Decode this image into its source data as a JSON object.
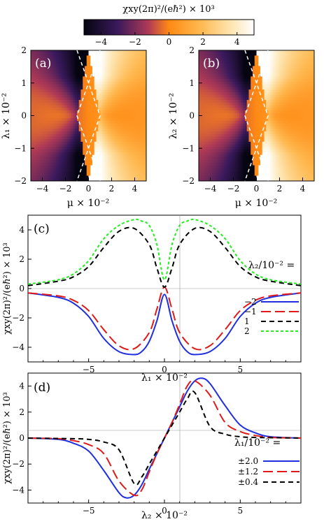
{
  "colorbar": {
    "title": "χxy(2π)²/(eℏ²) × 10³",
    "range": [
      -5,
      5
    ],
    "ticks": [
      -4,
      -2,
      0,
      2,
      4
    ],
    "tick_labels": [
      "−4",
      "−2",
      "0",
      "2",
      "4"
    ]
  },
  "heatmaps": [
    {
      "label": "(a)",
      "xlabel": "μ × 10⁻²",
      "ylabel": "λ₁ × 10⁻²",
      "xticks": [
        "−4",
        "−2",
        "0",
        "2",
        "4"
      ],
      "yticks": [
        "2",
        "1",
        "0",
        "−1",
        "−2"
      ]
    },
    {
      "label": "(b)",
      "xlabel": "μ × 10⁻²",
      "ylabel": "λ₂ × 10⁻²",
      "xticks": [
        "−4",
        "−2",
        "0",
        "2",
        "4"
      ],
      "yticks": [
        "2",
        "1",
        "0",
        "−1",
        "−2"
      ]
    }
  ],
  "chart_data": [
    {
      "type": "heatmap",
      "label": "(a)",
      "xlabel": "μ × 10⁻²",
      "ylabel": "λ₁ × 10⁻²",
      "xlim": [
        -5,
        5
      ],
      "ylim": [
        -2,
        2
      ],
      "zlim": [
        -5,
        5
      ],
      "overlay": "white dashed boundary |λ| = 2(1 − |μ|)"
    },
    {
      "type": "heatmap",
      "label": "(b)",
      "xlabel": "μ × 10⁻²",
      "ylabel": "λ₂ × 10⁻²",
      "xlim": [
        -5,
        5
      ],
      "ylim": [
        -2,
        2
      ],
      "zlim": [
        -5,
        5
      ],
      "overlay": "white dashed boundary |λ| = 2(1 − |μ|)"
    },
    {
      "type": "line",
      "label": "(c)",
      "xlabel": "λ₁ × 10⁻²",
      "ylabel": "χxy(2π)²/(eℏ²) × 10³",
      "xlim": [
        -9,
        9
      ],
      "ylim": [
        -5,
        5
      ],
      "xticks": [
        -5,
        0,
        5
      ],
      "yticks": [
        -4,
        -2,
        0,
        2,
        4
      ],
      "legend_title": "λ₂/10⁻² =",
      "series": [
        {
          "name": "−2",
          "color": "#1f2fe0",
          "dash": "solid",
          "x": [
            -9,
            -7,
            -6,
            -5,
            -4,
            -3,
            -2,
            -1.5,
            -1,
            -0.5,
            0,
            0.5,
            1,
            1.5,
            2,
            3,
            4,
            5,
            6,
            7,
            9
          ],
          "y": [
            -0.3,
            -0.6,
            -1.0,
            -1.9,
            -3.4,
            -4.3,
            -4.5,
            -4.3,
            -3.6,
            -2.2,
            -0.4,
            -2.2,
            -3.6,
            -4.3,
            -4.5,
            -4.3,
            -3.4,
            -1.9,
            -1.0,
            -0.6,
            -0.3
          ]
        },
        {
          "name": "−1",
          "color": "#e01a1a",
          "dash": "long",
          "x": [
            -9,
            -7,
            -6,
            -5,
            -4,
            -3,
            -2,
            -1,
            -0.5,
            0,
            0.5,
            1,
            2,
            3,
            4,
            5,
            6,
            7,
            9
          ],
          "y": [
            -0.3,
            -0.5,
            -0.8,
            -1.5,
            -2.8,
            -3.9,
            -4.1,
            -3.0,
            -1.4,
            0.1,
            -1.4,
            -3.0,
            -4.1,
            -3.9,
            -2.8,
            -1.5,
            -0.8,
            -0.5,
            -0.3
          ]
        },
        {
          "name": "1",
          "color": "#000000",
          "dash": "short",
          "x": [
            -9,
            -7,
            -6,
            -5,
            -4,
            -3,
            -2,
            -1,
            -0.5,
            0,
            0.5,
            1,
            2,
            3,
            4,
            5,
            6,
            7,
            9
          ],
          "y": [
            0.2,
            0.5,
            0.8,
            1.5,
            2.8,
            3.9,
            4.1,
            3.0,
            1.4,
            0.1,
            1.4,
            3.0,
            4.1,
            3.9,
            2.8,
            1.5,
            0.8,
            0.5,
            0.2
          ]
        },
        {
          "name": "2",
          "color": "#22ee22",
          "dash": "dotted",
          "x": [
            -9,
            -7,
            -6,
            -5,
            -4,
            -3,
            -2,
            -1.5,
            -1,
            -0.5,
            0,
            0.5,
            1,
            1.5,
            2,
            3,
            4,
            5,
            6,
            7,
            9
          ],
          "y": [
            0.3,
            0.6,
            1.0,
            1.9,
            3.4,
            4.3,
            4.7,
            4.6,
            4.3,
            3.0,
            0.6,
            3.0,
            4.3,
            4.6,
            4.7,
            4.3,
            3.4,
            1.9,
            1.0,
            0.6,
            0.3
          ]
        }
      ]
    },
    {
      "type": "line",
      "label": "(d)",
      "xlabel": "λ₂ × 10⁻²",
      "ylabel": "χxy(2π)²/(eℏ²) × 10³",
      "xlim": [
        -9,
        9
      ],
      "ylim": [
        -5,
        5
      ],
      "xticks": [
        -5,
        0,
        5
      ],
      "yticks": [
        -4,
        -2,
        0,
        2,
        4
      ],
      "legend_title": "λ₁/10⁻² =",
      "series": [
        {
          "name": "±2.0",
          "color": "#1f2fe0",
          "dash": "solid",
          "x": [
            -9,
            -7,
            -6,
            -5,
            -4,
            -3,
            -2.5,
            -2,
            -1.5,
            -1,
            -0.5,
            0,
            0.5,
            1,
            1.5,
            2,
            2.5,
            3,
            4,
            5,
            6,
            7,
            9
          ],
          "y": [
            0,
            -0.1,
            -0.4,
            -1.0,
            -2.5,
            -4.2,
            -4.6,
            -4.4,
            -3.6,
            -2.4,
            -1.2,
            0,
            1.2,
            2.4,
            3.6,
            4.4,
            4.6,
            4.2,
            2.5,
            1.0,
            0.4,
            0.1,
            0
          ]
        },
        {
          "name": "±1.2",
          "color": "#e01a1a",
          "dash": "long",
          "x": [
            -9,
            -7,
            -6,
            -5,
            -4,
            -3,
            -2,
            -1.5,
            -1,
            -0.5,
            0,
            0.5,
            1,
            1.5,
            2,
            3,
            4,
            5,
            6,
            7,
            9
          ],
          "y": [
            0,
            -0.05,
            -0.2,
            -0.5,
            -1.2,
            -3.3,
            -4.4,
            -4.0,
            -2.6,
            -1.2,
            0,
            1.2,
            2.6,
            4.0,
            4.4,
            3.3,
            1.2,
            0.5,
            0.2,
            0.05,
            0
          ]
        },
        {
          "name": "±0.4",
          "color": "#000000",
          "dash": "short",
          "x": [
            -9,
            -6,
            -5,
            -4,
            -3,
            -2,
            -1.5,
            -1,
            -0.5,
            0,
            0.5,
            1,
            1.5,
            2,
            3,
            4,
            5,
            6,
            9
          ],
          "y": [
            0,
            -0.05,
            -0.1,
            -0.3,
            -0.9,
            -3.5,
            -3.0,
            -2.0,
            -1.0,
            0,
            1.0,
            2.0,
            3.0,
            3.5,
            0.9,
            0.3,
            0.1,
            0.05,
            0
          ]
        }
      ]
    }
  ]
}
